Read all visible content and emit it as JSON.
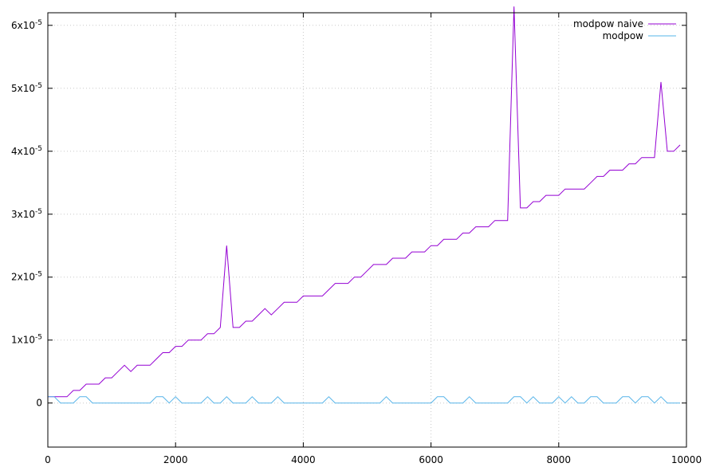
{
  "chart_data": {
    "type": "line",
    "title": "",
    "xlabel": "",
    "ylabel": "",
    "xlim": [
      0,
      10000
    ],
    "ylim": [
      -7e-06,
      6.2e-05
    ],
    "grid": true,
    "legend_position": "top-right",
    "x_ticks": [
      {
        "value": 0,
        "label": "0"
      },
      {
        "value": 2000,
        "label": "2000"
      },
      {
        "value": 4000,
        "label": "4000"
      },
      {
        "value": 6000,
        "label": "6000"
      },
      {
        "value": 8000,
        "label": "8000"
      },
      {
        "value": 10000,
        "label": "10000"
      }
    ],
    "y_ticks": [
      {
        "value": 0,
        "mantissa": "0",
        "exp": ""
      },
      {
        "value": 1e-05,
        "mantissa": "1x10",
        "exp": "-5"
      },
      {
        "value": 2e-05,
        "mantissa": "2x10",
        "exp": "-5"
      },
      {
        "value": 3e-05,
        "mantissa": "3x10",
        "exp": "-5"
      },
      {
        "value": 4e-05,
        "mantissa": "4x10",
        "exp": "-5"
      },
      {
        "value": 5e-05,
        "mantissa": "5x10",
        "exp": "-5"
      },
      {
        "value": 6e-05,
        "mantissa": "6x10",
        "exp": "-5"
      }
    ],
    "x": [
      0,
      100,
      200,
      300,
      400,
      500,
      600,
      700,
      800,
      900,
      1000,
      1100,
      1200,
      1300,
      1400,
      1500,
      1600,
      1700,
      1800,
      1900,
      2000,
      2100,
      2200,
      2300,
      2400,
      2500,
      2600,
      2700,
      2800,
      2900,
      3000,
      3100,
      3200,
      3300,
      3400,
      3500,
      3600,
      3700,
      3800,
      3900,
      4000,
      4100,
      4200,
      4300,
      4400,
      4500,
      4600,
      4700,
      4800,
      4900,
      5000,
      5100,
      5200,
      5300,
      5400,
      5500,
      5600,
      5700,
      5800,
      5900,
      6000,
      6100,
      6200,
      6300,
      6400,
      6500,
      6600,
      6700,
      6800,
      6900,
      7000,
      7100,
      7200,
      7300,
      7400,
      7500,
      7600,
      7700,
      7800,
      7900,
      8000,
      8100,
      8200,
      8300,
      8400,
      8500,
      8600,
      8700,
      8800,
      8900,
      9000,
      9100,
      9200,
      9300,
      9400,
      9500,
      9600,
      9700,
      9800,
      9900
    ],
    "series": [
      {
        "name": "modpow naive",
        "color": "#9400d3",
        "values": [
          1e-06,
          1e-06,
          1e-06,
          1e-06,
          2e-06,
          2e-06,
          3e-06,
          3e-06,
          3e-06,
          4e-06,
          4e-06,
          5e-06,
          6e-06,
          5e-06,
          6e-06,
          6e-06,
          6e-06,
          7e-06,
          8e-06,
          8e-06,
          9e-06,
          9e-06,
          1e-05,
          1e-05,
          1e-05,
          1.1e-05,
          1.1e-05,
          1.2e-05,
          2.5e-05,
          1.2e-05,
          1.2e-05,
          1.3e-05,
          1.3e-05,
          1.4e-05,
          1.5e-05,
          1.4e-05,
          1.5e-05,
          1.6e-05,
          1.6e-05,
          1.6e-05,
          1.7e-05,
          1.7e-05,
          1.7e-05,
          1.7e-05,
          1.8e-05,
          1.9e-05,
          1.9e-05,
          1.9e-05,
          2e-05,
          2e-05,
          2.1e-05,
          2.2e-05,
          2.2e-05,
          2.2e-05,
          2.3e-05,
          2.3e-05,
          2.3e-05,
          2.4e-05,
          2.4e-05,
          2.4e-05,
          2.5e-05,
          2.5e-05,
          2.6e-05,
          2.6e-05,
          2.6e-05,
          2.7e-05,
          2.7e-05,
          2.8e-05,
          2.8e-05,
          2.8e-05,
          2.9e-05,
          2.9e-05,
          2.9e-05,
          6.3e-05,
          3.1e-05,
          3.1e-05,
          3.2e-05,
          3.2e-05,
          3.3e-05,
          3.3e-05,
          3.3e-05,
          3.4e-05,
          3.4e-05,
          3.4e-05,
          3.4e-05,
          3.5e-05,
          3.6e-05,
          3.6e-05,
          3.7e-05,
          3.7e-05,
          3.7e-05,
          3.8e-05,
          3.8e-05,
          3.9e-05,
          3.9e-05,
          3.9e-05,
          5.1e-05,
          4e-05,
          4e-05,
          4.1e-05
        ]
      },
      {
        "name": "modpow",
        "color": "#56b4e9",
        "values": [
          1e-06,
          1e-06,
          0,
          0,
          0,
          1e-06,
          1e-06,
          0,
          0,
          0,
          0,
          0,
          0,
          0,
          0,
          0,
          0,
          1e-06,
          1e-06,
          0,
          1e-06,
          0,
          0,
          0,
          0,
          1e-06,
          0,
          0,
          1e-06,
          0,
          0,
          0,
          1e-06,
          0,
          0,
          0,
          1e-06,
          0,
          0,
          0,
          0,
          0,
          0,
          0,
          1e-06,
          0,
          0,
          0,
          0,
          0,
          0,
          0,
          0,
          1e-06,
          0,
          0,
          0,
          0,
          0,
          0,
          0,
          1e-06,
          1e-06,
          0,
          0,
          0,
          1e-06,
          0,
          0,
          0,
          0,
          0,
          0,
          1e-06,
          1e-06,
          0,
          1e-06,
          0,
          0,
          0,
          1e-06,
          0,
          1e-06,
          0,
          0,
          1e-06,
          1e-06,
          0,
          0,
          0,
          1e-06,
          1e-06,
          0,
          1e-06,
          1e-06,
          0,
          1e-06,
          0,
          0,
          0
        ]
      }
    ]
  }
}
